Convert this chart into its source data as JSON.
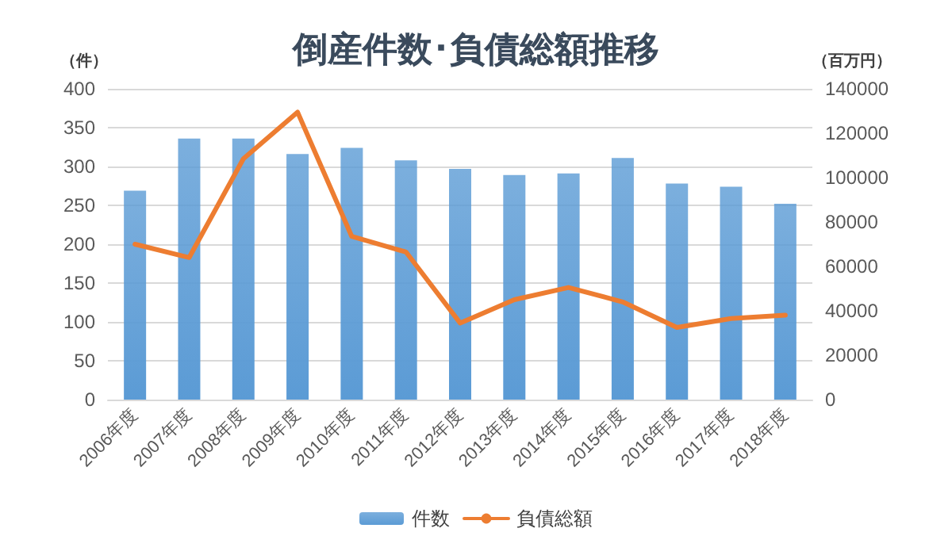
{
  "chart_data": {
    "type": "bar",
    "title": "倒産件数･負債総額推移",
    "ylabel": "（件）",
    "y2label": "（百万円）",
    "categories": [
      "2006年度",
      "2007年度",
      "2008年度",
      "2009年度",
      "2010年度",
      "2011年度",
      "2012年度",
      "2013年度",
      "2014年度",
      "2015年度",
      "2016年度",
      "2017年度",
      "2018年度"
    ],
    "series": [
      {
        "name": "件数",
        "color": "#5b9bd5",
        "values": [
          269,
          336,
          336,
          316,
          324,
          308,
          297,
          289,
          291,
          311,
          278,
          274,
          252
        ]
      },
      {
        "name": "負債総額",
        "type": "line",
        "axis": "y2",
        "color": "#ed7d31",
        "values": [
          70000,
          64000,
          108500,
          129500,
          73500,
          66500,
          34500,
          45000,
          50500,
          44000,
          32500,
          36500,
          38000
        ]
      }
    ],
    "ylim": [
      0,
      400
    ],
    "yticks": [
      0,
      50,
      100,
      150,
      200,
      250,
      300,
      350,
      400
    ],
    "y2lim": [
      0,
      140000
    ],
    "y2ticks": [
      0,
      20000,
      40000,
      60000,
      80000,
      100000,
      120000,
      140000
    ],
    "grid": "y",
    "legend": "bottom",
    "marker": "none",
    "line_style": "solid"
  }
}
